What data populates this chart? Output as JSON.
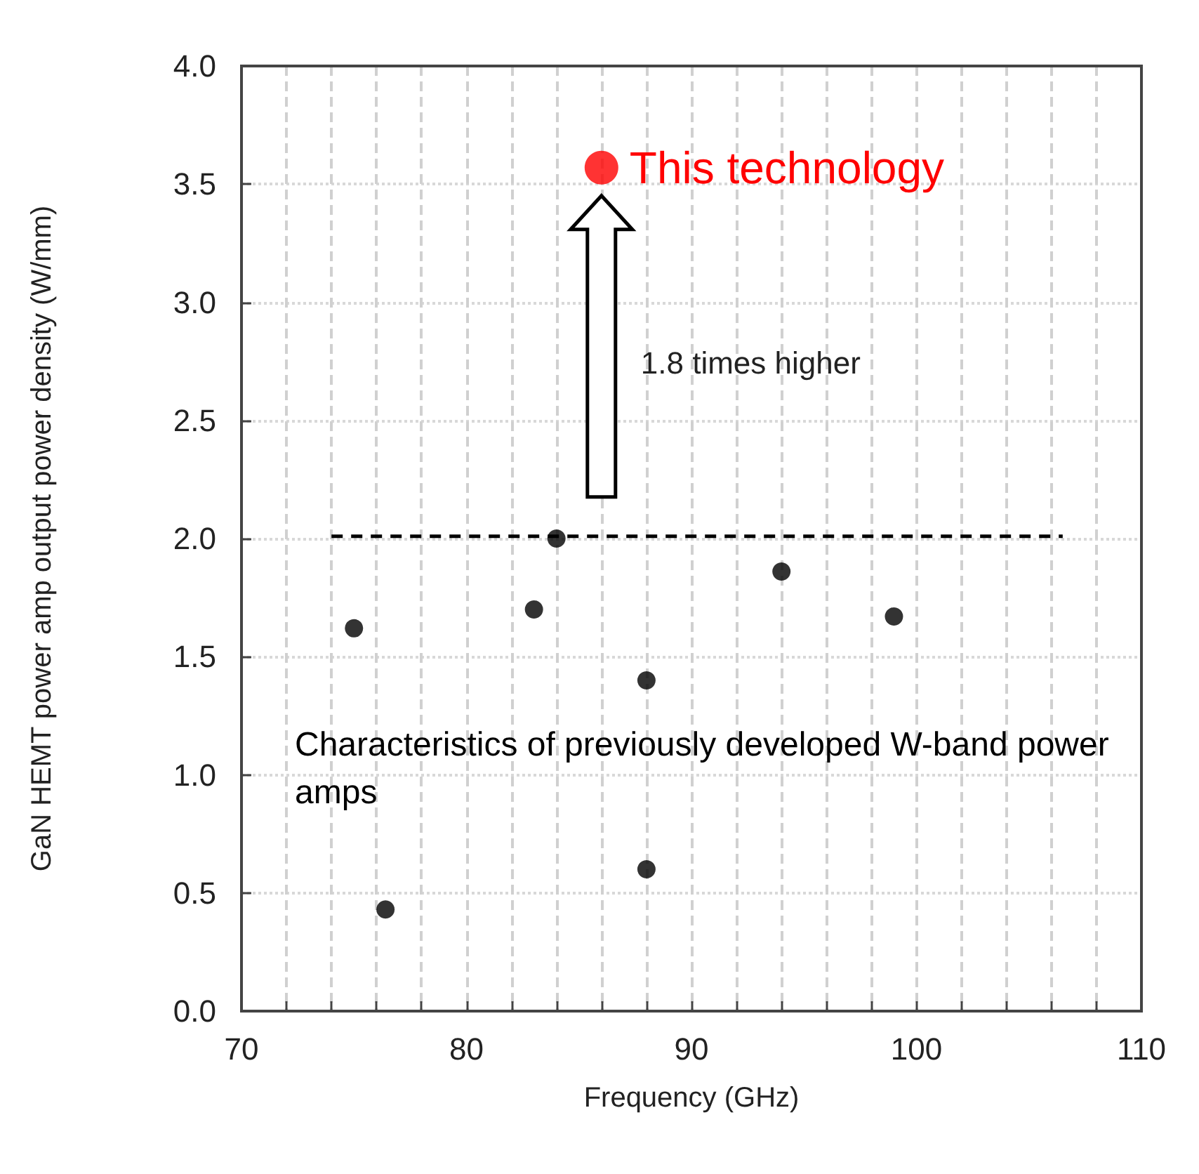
{
  "chart_data": {
    "type": "scatter",
    "xlabel": "Frequency (GHz)",
    "ylabel": "GaN HEMT power amp output power density (W/mm)",
    "xlim": [
      70,
      110
    ],
    "xticks": [
      70,
      {
        "value": 72,
        "label": null
      },
      {
        "value": 74,
        "label": null
      },
      {
        "value": 76,
        "label": null
      },
      {
        "value": 78,
        "label": null
      },
      80,
      {
        "value": 82,
        "label": null
      },
      {
        "value": 84,
        "label": null
      },
      {
        "value": 86,
        "label": null
      },
      {
        "value": 88,
        "label": null
      },
      90,
      {
        "value": 92,
        "label": null
      },
      {
        "value": 94,
        "label": null
      },
      {
        "value": 96,
        "label": null
      },
      {
        "value": 98,
        "label": null
      },
      100,
      {
        "value": 102,
        "label": null
      },
      {
        "value": 104,
        "label": null
      },
      {
        "value": 106,
        "label": null
      },
      {
        "value": 108,
        "label": null
      },
      110
    ],
    "ylim": [
      0,
      4
    ],
    "yticks": [
      {
        "value": 0,
        "label": "0.0"
      },
      0.5,
      {
        "value": 1,
        "label": "1.0"
      },
      1.5,
      {
        "value": 2,
        "label": "2.0"
      },
      2.5,
      {
        "value": 3,
        "label": "3.0"
      },
      3.5,
      {
        "value": 4,
        "label": "4.0"
      }
    ],
    "grid": true,
    "marker": "circle",
    "series": [
      {
        "name": "Characteristics of previously developed W-band power amps",
        "color": "#000000",
        "x": [
          75,
          76.4,
          83,
          84,
          88,
          88,
          94,
          99
        ],
        "values": [
          1.62,
          0.43,
          1.7,
          2.0,
          1.4,
          0.6,
          1.86,
          1.67
        ]
      },
      {
        "name": "This technology",
        "color": "#ff0000",
        "x": [
          86
        ],
        "values": [
          3.57
        ]
      },
      {
        "type": "line",
        "color": "#000000",
        "line_style": "dashed",
        "marker": "none",
        "x": [
          74,
          106.5
        ],
        "values": [
          2.01,
          2.01
        ]
      }
    ],
    "annotations": [
      "1.8 times higher"
    ]
  }
}
